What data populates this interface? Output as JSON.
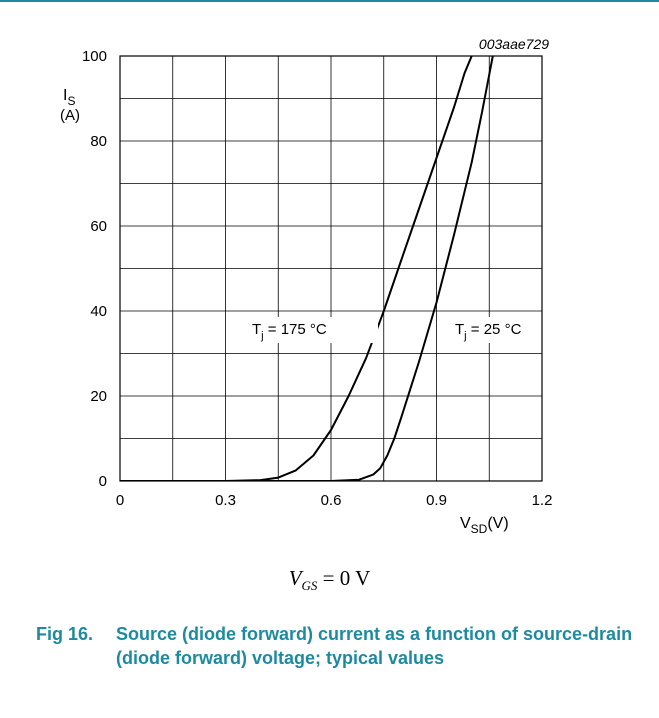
{
  "chart_data": {
    "type": "line",
    "figure_code": "003aae729",
    "ylabel": {
      "symbol": "I",
      "sub": "S",
      "unit": "(A)"
    },
    "xlabel": {
      "symbol": "V",
      "sub": "SD",
      "unit": "(V)"
    },
    "xlim": [
      0,
      1.2
    ],
    "ylim": [
      0,
      100
    ],
    "x_ticks": [
      "0",
      "0.3",
      "0.6",
      "0.9",
      "1.2"
    ],
    "y_ticks": [
      "0",
      "20",
      "40",
      "60",
      "80",
      "100"
    ],
    "grid": true,
    "series": [
      {
        "label": {
          "prefix": "T",
          "sub": "j",
          "text": " = 175 °C"
        },
        "x": [
          0,
          0.3,
          0.4,
          0.45,
          0.5,
          0.55,
          0.6,
          0.65,
          0.7,
          0.75,
          0.8,
          0.85,
          0.9,
          0.95,
          0.98,
          1.0
        ],
        "y": [
          0,
          0,
          0.2,
          0.8,
          2.5,
          6,
          12,
          20,
          29,
          40,
          52,
          64,
          76,
          88,
          96,
          100
        ]
      },
      {
        "label": {
          "prefix": "T",
          "sub": "j",
          "text": " = 25 °C"
        },
        "x": [
          0,
          0.6,
          0.68,
          0.72,
          0.74,
          0.76,
          0.78,
          0.8,
          0.85,
          0.9,
          0.95,
          1.0,
          1.03,
          1.06
        ],
        "y": [
          0,
          0,
          0.3,
          1.5,
          3,
          6,
          10,
          15,
          28,
          42,
          58,
          75,
          87,
          100
        ]
      }
    ]
  },
  "condition": {
    "symbol": "V",
    "sub": "GS",
    "text": " = 0 V"
  },
  "caption": {
    "number": "Fig 16.",
    "text": "Source (diode forward) current as a function of source-drain (diode forward) voltage; typical values"
  }
}
